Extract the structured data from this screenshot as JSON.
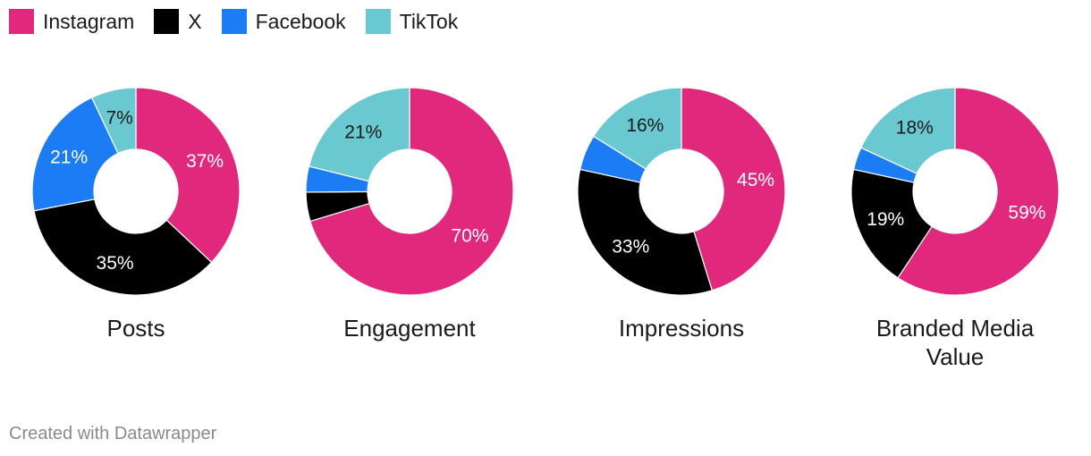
{
  "legend": [
    {
      "label": "Instagram",
      "color": "#e0297c"
    },
    {
      "label": "X",
      "color": "#000000"
    },
    {
      "label": "Facebook",
      "color": "#1c7cf4"
    },
    {
      "label": "TikTok",
      "color": "#6ac9d0"
    }
  ],
  "chart_data": [
    {
      "type": "pie",
      "title": "Posts",
      "categories": [
        "Instagram",
        "X",
        "Facebook",
        "TikTok"
      ],
      "values": [
        37,
        35,
        21,
        7
      ],
      "labels": [
        "37%",
        "35%",
        "21%",
        "7%"
      ]
    },
    {
      "type": "pie",
      "title": "Engagement",
      "categories": [
        "Instagram",
        "X",
        "Facebook",
        "TikTok"
      ],
      "values": [
        70,
        4.5,
        4,
        21
      ],
      "labels": [
        "70%",
        "",
        "",
        "21%"
      ]
    },
    {
      "type": "pie",
      "title": "Impressions",
      "categories": [
        "Instagram",
        "X",
        "Facebook",
        "TikTok"
      ],
      "values": [
        45,
        33,
        5.5,
        16
      ],
      "labels": [
        "45%",
        "33%",
        "",
        "16%"
      ]
    },
    {
      "type": "pie",
      "title": "Branded Media Value",
      "categories": [
        "Instagram",
        "X",
        "Facebook",
        "TikTok"
      ],
      "values": [
        59,
        19,
        3.5,
        18
      ],
      "labels": [
        "59%",
        "19%",
        "",
        "18%"
      ]
    }
  ],
  "footer": "Created with Datawrapper"
}
